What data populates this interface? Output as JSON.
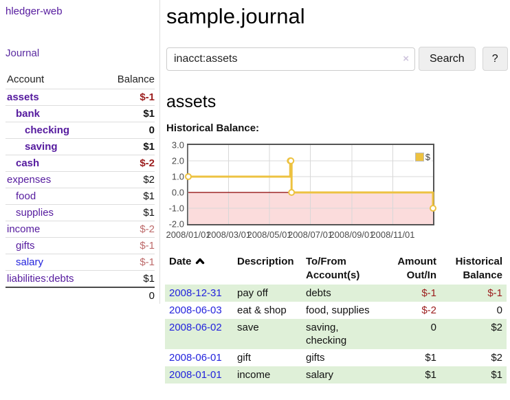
{
  "colors": {
    "link_purple": "#551a9e",
    "link_blue": "#2323dd",
    "negative_strong": "#9b1c1c",
    "negative_light": "#bd6a6a",
    "row_stripe_green": "#dff0d8",
    "chart_series_gold": "#edc240",
    "chart_negative_region": "#fbdcdc",
    "chart_zero_line": "#8b0000",
    "chart_border": "#545454",
    "chart_grid": "#d8d8d8"
  },
  "sidebar": {
    "brand": "hledger-web",
    "journal_link": "Journal",
    "accounts_table": {
      "headers": [
        "Account",
        "Balance"
      ],
      "rows": [
        {
          "account": "assets",
          "depth": 1,
          "bold": true,
          "balance": "$-1",
          "balance_tone": "neg-strong"
        },
        {
          "account": "bank",
          "depth": 2,
          "bold": true,
          "balance": "$1",
          "balance_tone": "plain-bold"
        },
        {
          "account": "checking",
          "depth": 3,
          "bold": true,
          "balance": "0",
          "balance_tone": "plain-bold"
        },
        {
          "account": "saving",
          "depth": 3,
          "bold": true,
          "balance": "$1",
          "balance_tone": "plain-bold"
        },
        {
          "account": "cash",
          "depth": 2,
          "bold": true,
          "balance": "$-2",
          "balance_tone": "neg-strong"
        },
        {
          "account": "expenses",
          "depth": 1,
          "bold": false,
          "balance": "$2",
          "balance_tone": "plain"
        },
        {
          "account": "food",
          "depth": 2,
          "bold": false,
          "balance": "$1",
          "balance_tone": "plain"
        },
        {
          "account": "supplies",
          "depth": 2,
          "bold": false,
          "balance": "$1",
          "balance_tone": "plain"
        },
        {
          "account": "income",
          "depth": 1,
          "bold": false,
          "balance": "$-2",
          "balance_tone": "neg-light"
        },
        {
          "account": "gifts",
          "depth": 2,
          "bold": false,
          "balance": "$-1",
          "balance_tone": "neg-light"
        },
        {
          "account": "salary",
          "depth": 2,
          "bold": false,
          "balance": "$-1",
          "balance_tone": "neg-light",
          "link_color": "blue"
        },
        {
          "account": "liabilities:debts",
          "depth": 1,
          "bold": false,
          "balance": "$1",
          "balance_tone": "plain"
        }
      ],
      "total": "0"
    }
  },
  "header": {
    "title": "sample.journal"
  },
  "search": {
    "value": "inacct:assets",
    "clear_icon": "×",
    "button_label": "Search",
    "help_label": "?"
  },
  "account_page": {
    "heading": "assets",
    "chart_label": "Historical Balance:"
  },
  "chart_data": {
    "type": "line",
    "title": "Historical Balance",
    "step": true,
    "legend": [
      {
        "name": "$",
        "color": "#edc240"
      }
    ],
    "legend_position": "top-right",
    "grid": true,
    "ylim": [
      -2.0,
      3.0
    ],
    "y_ticks": [
      "3.0",
      "2.0",
      "1.0",
      "0.0",
      "-1.0",
      "-2.0"
    ],
    "x_domain": [
      "2008-01-01",
      "2008-12-31"
    ],
    "x_ticks": [
      {
        "label": "2008/01/01",
        "date": "2008-01-01"
      },
      {
        "label": "2008/03/01",
        "date": "2008-03-01"
      },
      {
        "label": "2008/05/01",
        "date": "2008-05-01"
      },
      {
        "label": "2008/07/01",
        "date": "2008-07-01"
      },
      {
        "label": "2008/09/01",
        "date": "2008-09-01"
      },
      {
        "label": "2008/11/01",
        "date": "2008-11-01"
      }
    ],
    "series": [
      {
        "name": "$",
        "color": "#edc240",
        "points": [
          {
            "date": "2008-01-01",
            "value": 1
          },
          {
            "date": "2008-06-01",
            "value": 2
          },
          {
            "date": "2008-06-02",
            "value": 2
          },
          {
            "date": "2008-06-03",
            "value": 0
          },
          {
            "date": "2008-12-31",
            "value": -1
          }
        ]
      }
    ]
  },
  "register_table": {
    "headers": [
      {
        "label": "Date",
        "align": "left",
        "sort": "asc"
      },
      {
        "label": "Description",
        "align": "left"
      },
      {
        "label": "To/From Account(s)",
        "align": "left"
      },
      {
        "label": "Amount Out/In",
        "align": "right"
      },
      {
        "label": "Historical Balance",
        "align": "right"
      }
    ],
    "rows": [
      {
        "date": "2008-12-31",
        "description": "pay off",
        "accounts": "debts",
        "amount": "$-1",
        "balance": "$-1"
      },
      {
        "date": "2008-06-03",
        "description": "eat & shop",
        "accounts": "food, supplies",
        "amount": "$-2",
        "balance": "0"
      },
      {
        "date": "2008-06-02",
        "description": "save",
        "accounts": "saving, checking",
        "amount": "0",
        "balance": "$2"
      },
      {
        "date": "2008-06-01",
        "description": "gift",
        "accounts": "gifts",
        "amount": "$1",
        "balance": "$2"
      },
      {
        "date": "2008-01-01",
        "description": "income",
        "accounts": "salary",
        "amount": "$1",
        "balance": "$1"
      }
    ]
  }
}
